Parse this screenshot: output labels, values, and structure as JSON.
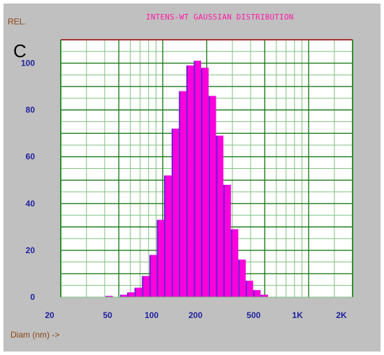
{
  "chart_data": {
    "type": "bar",
    "title": "INTENS-WT GAUSSIAN DISTRIBUTION",
    "panel_label": "C",
    "ylabel": "REL.",
    "xlabel": "Diam (nm) ->",
    "xscale": "log",
    "xlim": [
      20,
      2000
    ],
    "ylim": [
      0,
      110
    ],
    "grid": true,
    "y_ticks": [
      0,
      20,
      40,
      60,
      80,
      100
    ],
    "x_ticks": [
      {
        "value": 20,
        "label": "20"
      },
      {
        "value": 50,
        "label": "50"
      },
      {
        "value": 100,
        "label": "100"
      },
      {
        "value": 200,
        "label": "200"
      },
      {
        "value": 500,
        "label": "500"
      },
      {
        "value": 1000,
        "label": "1K"
      },
      {
        "value": 2000,
        "label": "2K"
      }
    ],
    "bins": [
      {
        "from": 40.5,
        "to": 45.5,
        "value": 0.5
      },
      {
        "from": 51,
        "to": 57,
        "value": 1
      },
      {
        "from": 57,
        "to": 64,
        "value": 2
      },
      {
        "from": 64,
        "to": 72,
        "value": 4
      },
      {
        "from": 72,
        "to": 81,
        "value": 9
      },
      {
        "from": 81,
        "to": 91,
        "value": 18
      },
      {
        "from": 91,
        "to": 102,
        "value": 33
      },
      {
        "from": 102,
        "to": 115,
        "value": 52
      },
      {
        "from": 115,
        "to": 129,
        "value": 72
      },
      {
        "from": 129,
        "to": 145,
        "value": 88
      },
      {
        "from": 145,
        "to": 163,
        "value": 99
      },
      {
        "from": 163,
        "to": 183,
        "value": 101
      },
      {
        "from": 183,
        "to": 206,
        "value": 98
      },
      {
        "from": 206,
        "to": 232,
        "value": 86
      },
      {
        "from": 232,
        "to": 260,
        "value": 69
      },
      {
        "from": 260,
        "to": 293,
        "value": 48
      },
      {
        "from": 293,
        "to": 329,
        "value": 29
      },
      {
        "from": 329,
        "to": 370,
        "value": 16
      },
      {
        "from": 370,
        "to": 416,
        "value": 7
      },
      {
        "from": 416,
        "to": 468,
        "value": 3
      },
      {
        "from": 468,
        "to": 526,
        "value": 1
      }
    ]
  },
  "colors": {
    "background": "#c0c0c0",
    "plot_area": "#ffffff",
    "bar_fill": "#ff00dc",
    "bar_shadow": "#6a1fd6",
    "grid_major": "#1a7a1a",
    "grid_minor": "#7fbf7f",
    "frame_top": "#a83232",
    "frame_side": "#2f8f2f",
    "title": "#ff1aa8",
    "tick_label": "#1f1f9e",
    "axis_name": "#8b4513"
  }
}
